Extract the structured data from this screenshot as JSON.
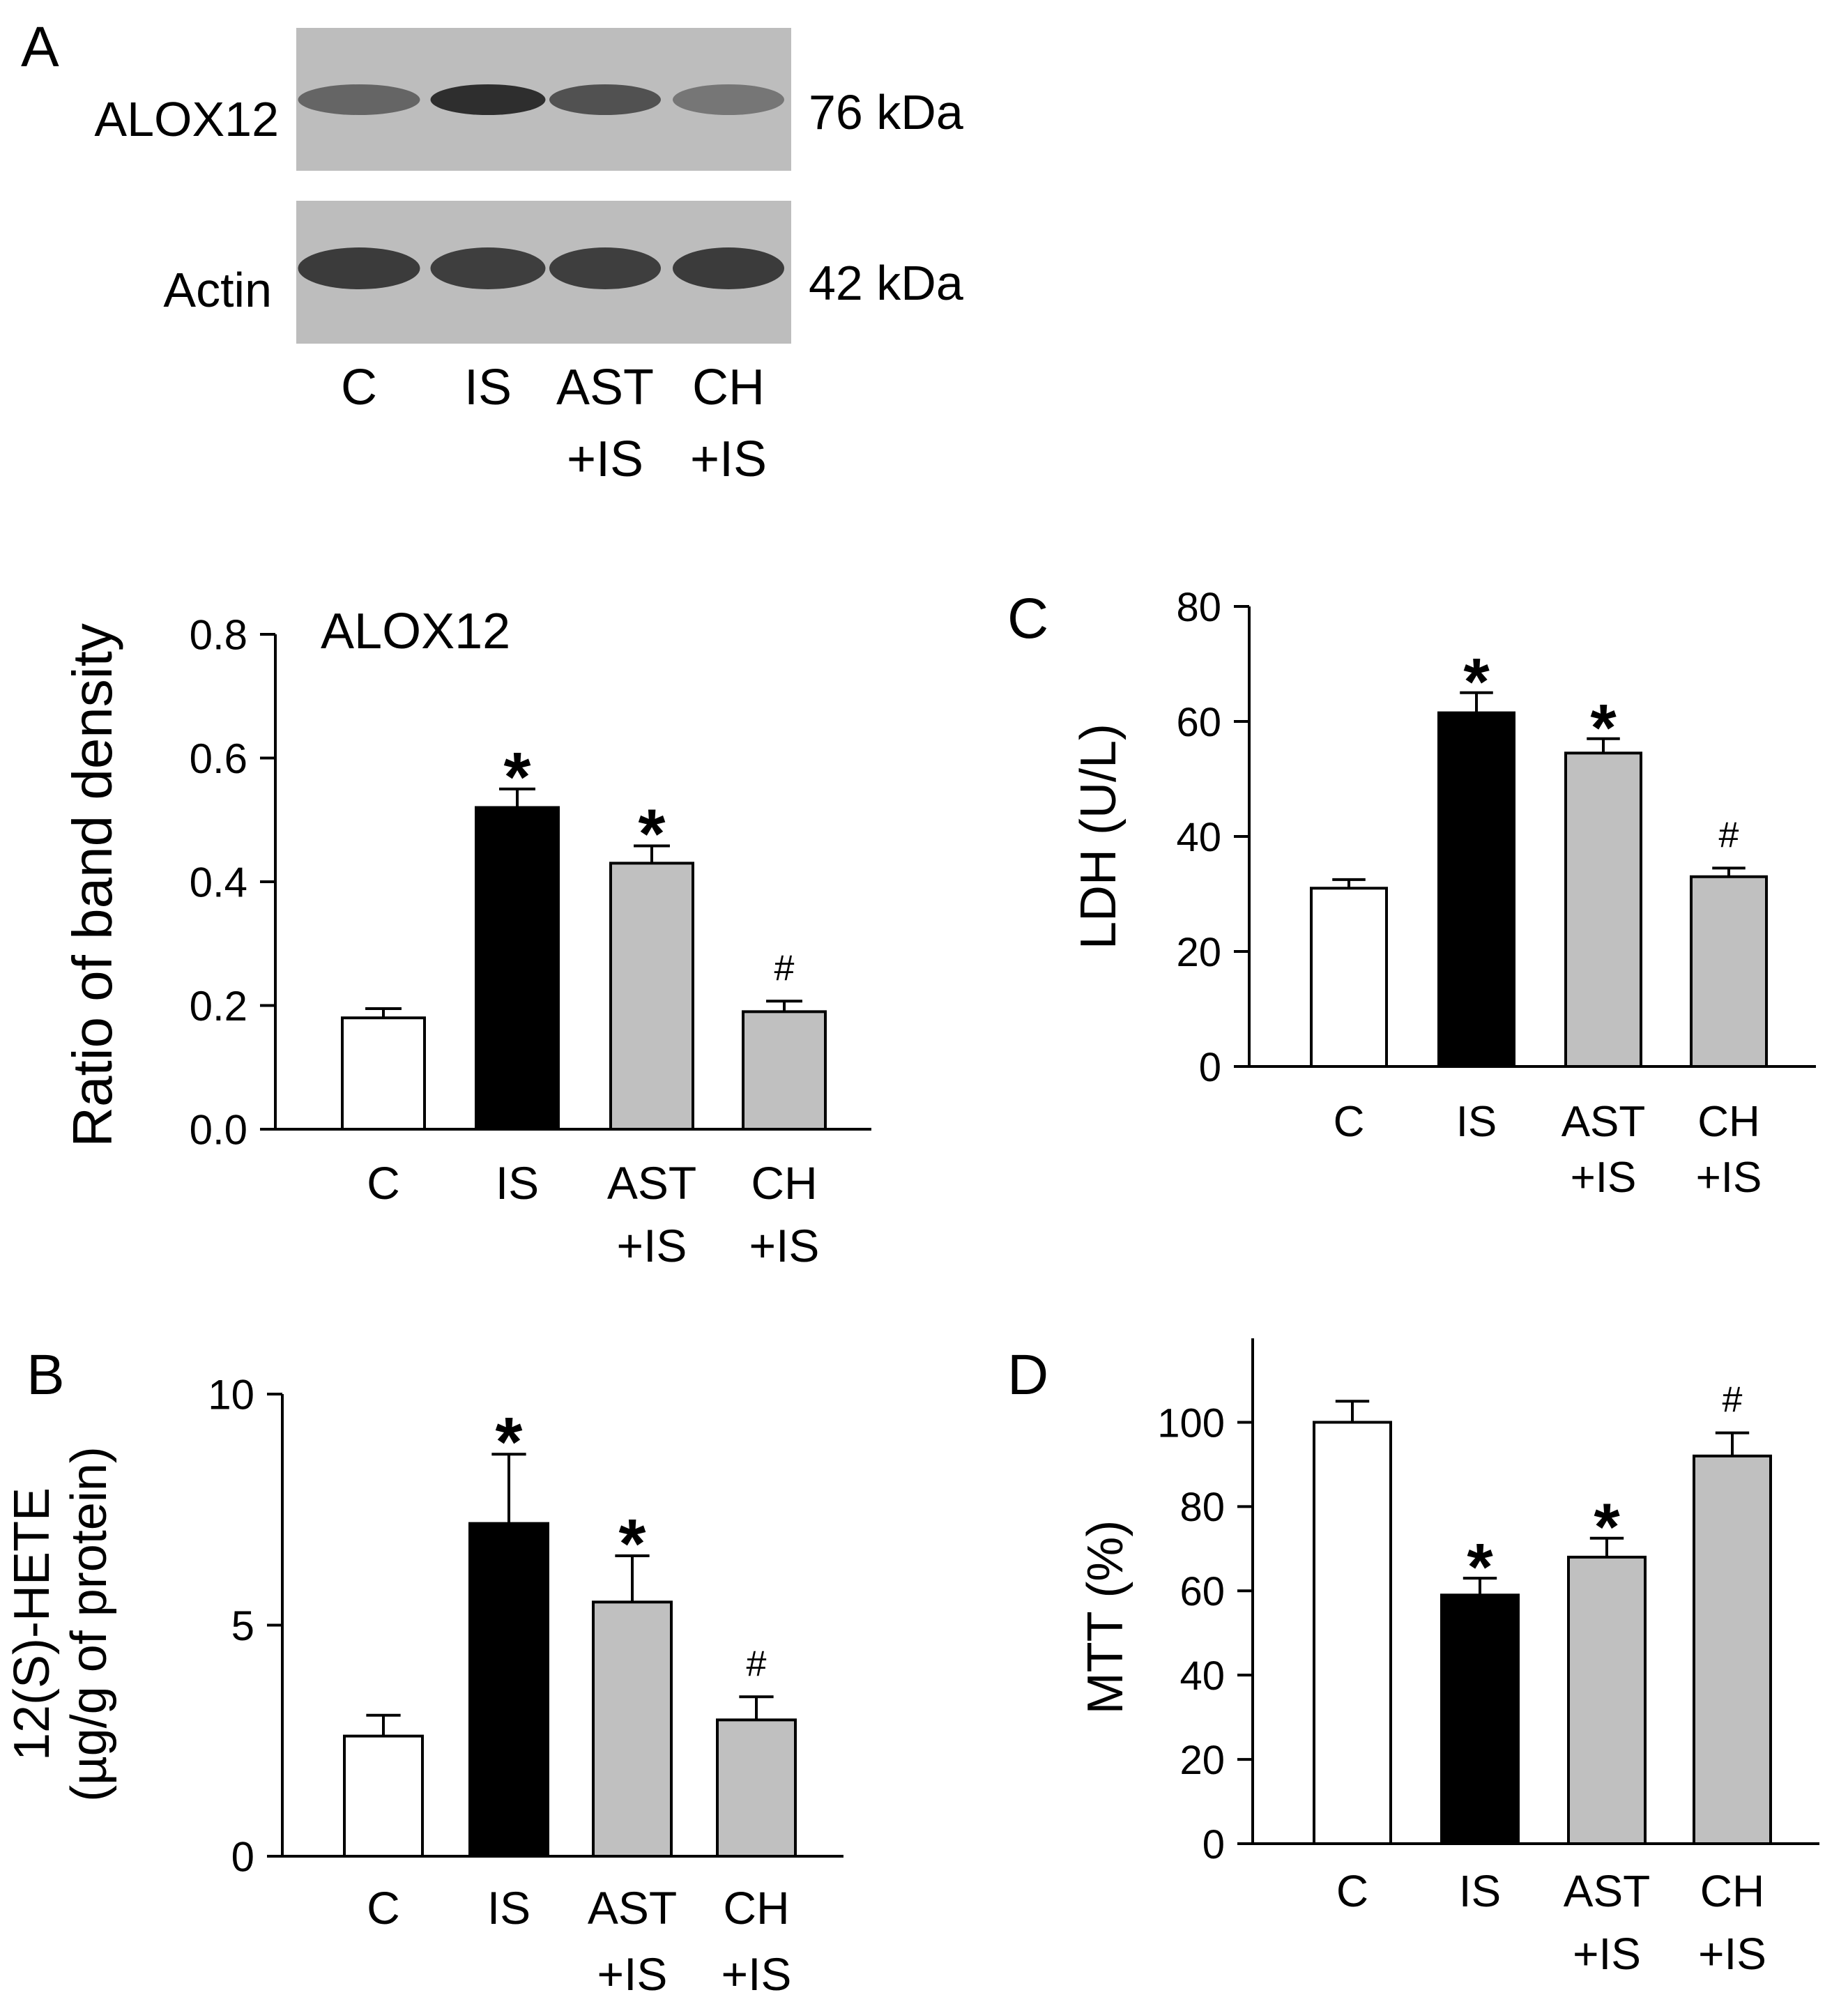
{
  "figure": {
    "panel_labels": [
      "A",
      "B",
      "C",
      "D"
    ],
    "blot": {
      "rows": [
        {
          "protein": "ALOX12",
          "size": "76 kDa",
          "band_darkness": [
            0.55,
            0.9,
            0.68,
            0.45
          ]
        },
        {
          "protein": "Actin",
          "size": "42 kDa",
          "band_darkness": [
            0.82,
            0.8,
            0.8,
            0.82
          ]
        }
      ],
      "lanes": [
        {
          "line1": "C",
          "line2": ""
        },
        {
          "line1": "IS",
          "line2": ""
        },
        {
          "line1": "AST",
          "line2": "+IS"
        },
        {
          "line1": "CH",
          "line2": "+IS"
        }
      ]
    },
    "colors": {
      "C": "#ffffff",
      "IS": "#000000",
      "AST+IS": "#c0c0c0",
      "CH+IS": "#c0c0c0",
      "blot_bg": "#bdbdbd",
      "band": "#1e1e1e"
    }
  },
  "chart_data": [
    {
      "id": "alox12-density",
      "type": "bar",
      "title": "ALOX12",
      "ylabel": [
        "Ratio of band density"
      ],
      "ylim": [
        0,
        0.8
      ],
      "yticks": [
        "0.0",
        "0.2",
        "0.4",
        "0.6",
        "0.8"
      ],
      "categories": [
        {
          "line1": "C",
          "line2": ""
        },
        {
          "line1": "IS",
          "line2": ""
        },
        {
          "line1": "AST",
          "line2": "+IS"
        },
        {
          "line1": "CH",
          "line2": "+IS"
        }
      ],
      "values": [
        0.18,
        0.52,
        0.43,
        0.19
      ],
      "errors": [
        0.015,
        0.03,
        0.028,
        0.017
      ],
      "annotations": [
        "",
        "*",
        "*",
        "#"
      ]
    },
    {
      "id": "hete",
      "type": "bar",
      "title": "",
      "ylabel": [
        "12(S)-HETE",
        "(µg/g of protein)"
      ],
      "ylim": [
        0,
        10
      ],
      "yticks": [
        "0",
        "5",
        "10"
      ],
      "categories": [
        {
          "line1": "C",
          "line2": ""
        },
        {
          "line1": "IS",
          "line2": ""
        },
        {
          "line1": "AST",
          "line2": "+IS"
        },
        {
          "line1": "CH",
          "line2": "+IS"
        }
      ],
      "values": [
        2.6,
        7.2,
        5.5,
        2.95
      ],
      "errors": [
        0.45,
        1.5,
        1.0,
        0.5
      ],
      "annotations": [
        "",
        "*",
        "*",
        "#"
      ]
    },
    {
      "id": "ldh",
      "type": "bar",
      "title": "",
      "ylabel": [
        "LDH (U/L)"
      ],
      "ylim": [
        0,
        80
      ],
      "yticks": [
        "0",
        "20",
        "40",
        "60",
        "80"
      ],
      "categories": [
        {
          "line1": "C",
          "line2": ""
        },
        {
          "line1": "IS",
          "line2": ""
        },
        {
          "line1": "AST",
          "line2": "+IS"
        },
        {
          "line1": "CH",
          "line2": "+IS"
        }
      ],
      "values": [
        31,
        61.5,
        54.5,
        33
      ],
      "errors": [
        1.5,
        3.5,
        2.5,
        1.5
      ],
      "annotations": [
        "",
        "*",
        "*",
        "#"
      ]
    },
    {
      "id": "mtt",
      "type": "bar",
      "title": "",
      "ylabel": [
        "MTT (%)"
      ],
      "ylim": [
        0,
        110
      ],
      "yticks": [
        "0",
        "20",
        "40",
        "60",
        "80",
        "100"
      ],
      "categories": [
        {
          "line1": "C",
          "line2": ""
        },
        {
          "line1": "IS",
          "line2": ""
        },
        {
          "line1": "AST",
          "line2": "+IS"
        },
        {
          "line1": "CH",
          "line2": "+IS"
        }
      ],
      "values": [
        100,
        59,
        68,
        92
      ],
      "errors": [
        5,
        4,
        4.5,
        5.5
      ],
      "annotations": [
        "",
        "*",
        "*",
        "#"
      ]
    }
  ]
}
